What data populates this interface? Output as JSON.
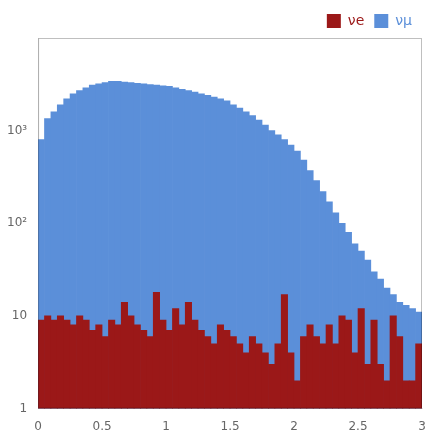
{
  "chart_data": {
    "type": "histogram",
    "bins": [
      0.0,
      0.05,
      0.1,
      0.15,
      0.2,
      0.25,
      0.3,
      0.35,
      0.4,
      0.45,
      0.5,
      0.55,
      0.6,
      0.65,
      0.7,
      0.75,
      0.8,
      0.85,
      0.9,
      0.95,
      1.0,
      1.05,
      1.1,
      1.15,
      1.2,
      1.25,
      1.3,
      1.35,
      1.4,
      1.45,
      1.5,
      1.55,
      1.6,
      1.65,
      1.7,
      1.75,
      1.8,
      1.85,
      1.9,
      1.95,
      2.0,
      2.05,
      2.1,
      2.15,
      2.2,
      2.25,
      2.3,
      2.35,
      2.4,
      2.45,
      2.5,
      2.55,
      2.6,
      2.65,
      2.7,
      2.75,
      2.8,
      2.85,
      2.9,
      2.95,
      3.0
    ],
    "series": [
      {
        "name": "νμ",
        "color": "#5b8fd9",
        "values": [
          800,
          1350,
          1600,
          1900,
          2200,
          2500,
          2700,
          2900,
          3100,
          3200,
          3300,
          3400,
          3400,
          3350,
          3300,
          3250,
          3200,
          3150,
          3100,
          3050,
          3000,
          2900,
          2800,
          2700,
          2600,
          2500,
          2400,
          2300,
          2200,
          2100,
          1900,
          1750,
          1600,
          1450,
          1300,
          1150,
          1000,
          900,
          800,
          700,
          600,
          480,
          370,
          290,
          220,
          170,
          130,
          100,
          80,
          60,
          50,
          40,
          30,
          25,
          20,
          17,
          14,
          13,
          12,
          11
        ]
      },
      {
        "name": "νe",
        "color": "#9b1818",
        "values": [
          9,
          10,
          9,
          10,
          9,
          8,
          10,
          9,
          7,
          8,
          6,
          9,
          8,
          14,
          10,
          8,
          7,
          6,
          18,
          9,
          7,
          12,
          8,
          14,
          9,
          7,
          6,
          5,
          8,
          7,
          6,
          5,
          4,
          6,
          5,
          4,
          3,
          5,
          17,
          4,
          2,
          6,
          8,
          6,
          5,
          8,
          5,
          10,
          9,
          4,
          12,
          3,
          9,
          3,
          2,
          10,
          6,
          2,
          2,
          5
        ]
      }
    ],
    "xlim": [
      0,
      3
    ],
    "ylim": [
      1,
      10000
    ],
    "xticks": [
      0,
      0.5,
      1,
      1.5,
      2,
      2.5,
      3
    ],
    "yticks": [
      1,
      10,
      {
        "value": 100,
        "label": "10²"
      },
      {
        "value": 1000,
        "label": "10³"
      }
    ],
    "log": "y",
    "grid": false,
    "legend": "upper right"
  }
}
